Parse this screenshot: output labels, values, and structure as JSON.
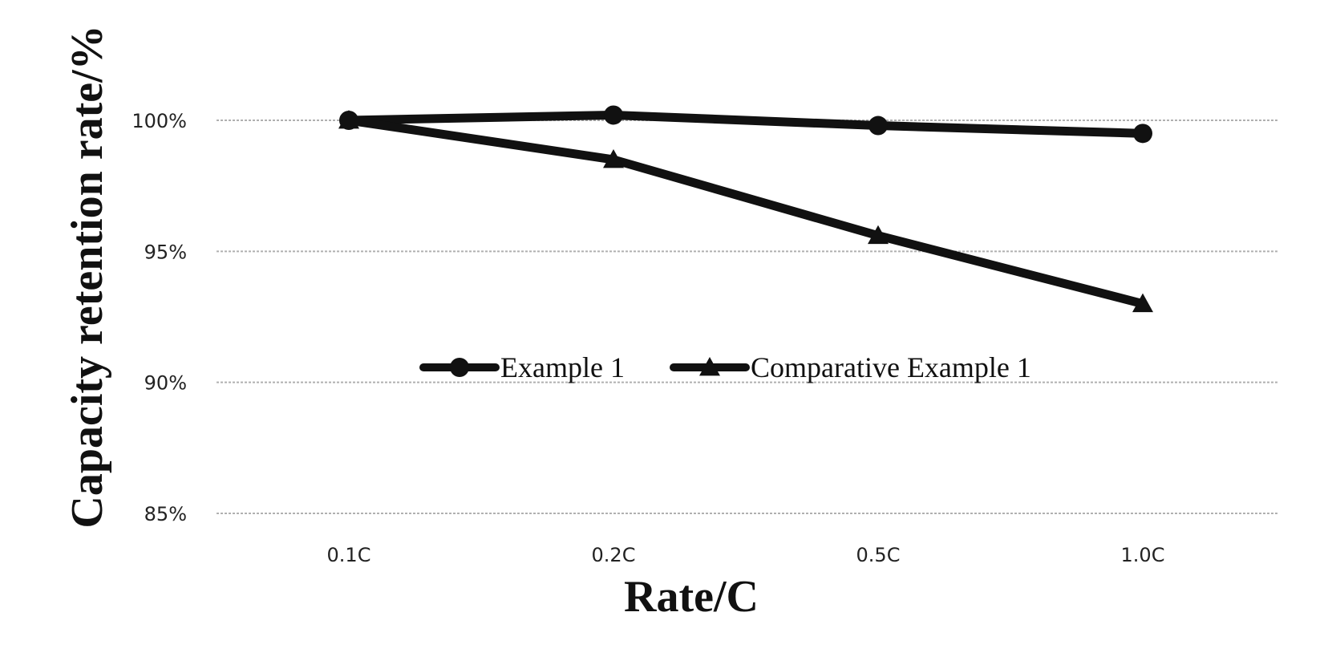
{
  "chart_data": {
    "type": "line",
    "title": "",
    "xlabel": "Rate/C",
    "ylabel": "Capacity retention rate/%",
    "categories": [
      "0.1C",
      "0.2C",
      "0.5C",
      "1.0C"
    ],
    "ylim": [
      85,
      100
    ],
    "yticks": [
      {
        "value": 85,
        "label": "85%"
      },
      {
        "value": 90,
        "label": "90%"
      },
      {
        "value": 95,
        "label": "95%"
      },
      {
        "value": 100,
        "label": "100%"
      }
    ],
    "grid": true,
    "legend_position": "center",
    "series": [
      {
        "name": "Example 1",
        "marker": "circle",
        "color": "#111111",
        "values": [
          100.0,
          100.2,
          99.8,
          99.5
        ]
      },
      {
        "name": "Comparative Example 1",
        "marker": "triangle",
        "color": "#111111",
        "values": [
          100.0,
          98.5,
          95.6,
          93.0
        ]
      }
    ]
  }
}
